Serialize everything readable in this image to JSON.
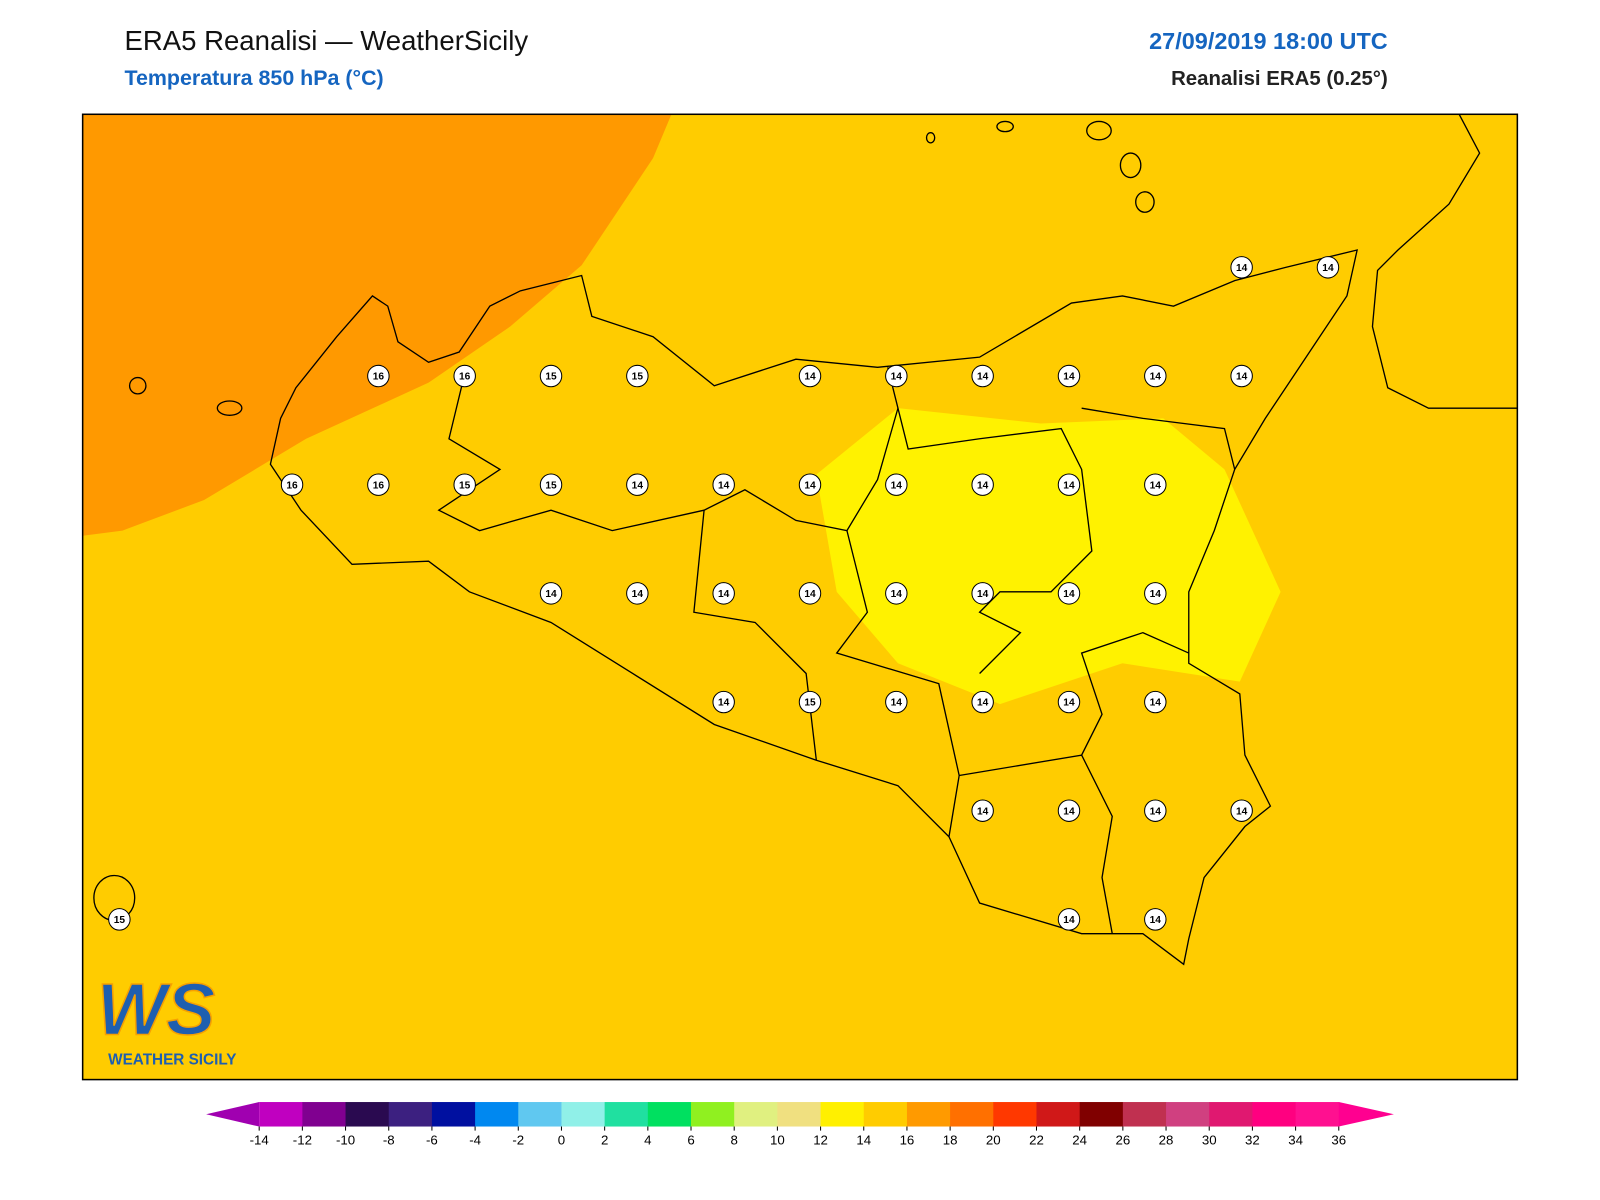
{
  "header": {
    "title": "ERA5 Reanalisi — WeatherSicily",
    "subtitle": "Temperatura 850 hPa (°C)",
    "date": "27/09/2019 18:00 UTC",
    "source": "Reanalisi ERA5 (0.25°)"
  },
  "map": {
    "stations": [
      [
        null,
        null,
        null,
        null,
        null,
        null,
        null,
        null,
        null,
        null,
        null,
        null,
        null,
        14,
        14
      ],
      [
        null,
        null,
        null,
        16,
        16,
        15,
        15,
        null,
        14,
        14,
        14,
        14,
        14,
        14,
        null
      ],
      [
        null,
        null,
        16,
        16,
        15,
        15,
        14,
        14,
        14,
        14,
        14,
        14,
        14,
        null,
        null
      ],
      [
        null,
        null,
        null,
        null,
        null,
        14,
        14,
        14,
        14,
        14,
        14,
        14,
        14,
        null,
        null
      ],
      [
        null,
        null,
        null,
        null,
        null,
        null,
        null,
        14,
        15,
        14,
        14,
        14,
        14,
        null,
        null
      ],
      [
        null,
        null,
        null,
        null,
        null,
        null,
        null,
        null,
        null,
        null,
        14,
        14,
        14,
        14,
        null
      ],
      [
        15,
        null,
        null,
        null,
        null,
        null,
        null,
        null,
        null,
        null,
        null,
        14,
        14,
        null,
        null
      ]
    ]
  },
  "logo": {
    "mark": "WS",
    "name": "WEATHER SICILY"
  },
  "colorbar": {
    "ticks": [
      -14,
      -12,
      -10,
      -8,
      -6,
      -4,
      -2,
      0,
      2,
      4,
      6,
      8,
      10,
      12,
      14,
      16,
      18,
      20,
      22,
      24,
      26,
      28,
      30,
      32,
      34,
      36
    ],
    "colors": [
      "#c000c0",
      "#800090",
      "#2a0a50",
      "#3c2080",
      "#0010a0",
      "#0088f0",
      "#60c8f0",
      "#90f0e8",
      "#20e0a0",
      "#00e060",
      "#90f020",
      "#e0f080",
      "#f0e080",
      "#fff000",
      "#ffcc00",
      "#ff9a00",
      "#ff7000",
      "#ff3800",
      "#d01818",
      "#800000",
      "#c03050",
      "#d04080",
      "#e01870",
      "#ff0080",
      "#ff1090"
    ],
    "under_color": "#a000b0",
    "over_color": "#ff0090"
  }
}
